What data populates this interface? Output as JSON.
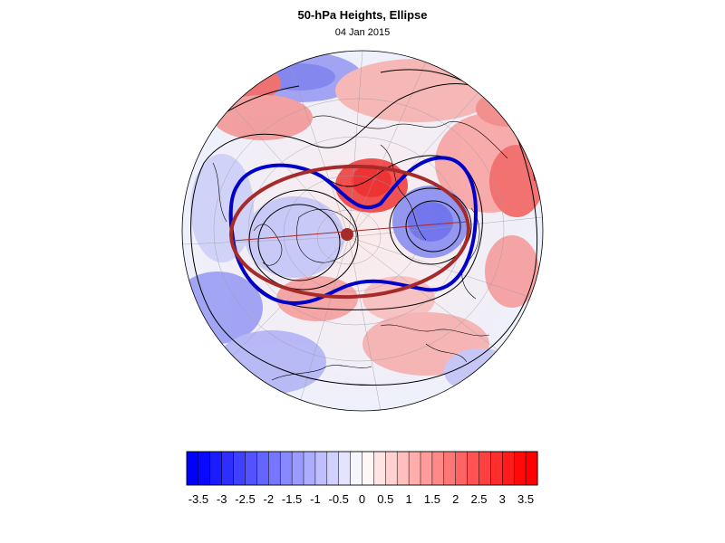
{
  "header": {
    "title": "50-hPa Heights, Ellipse",
    "date": "04 Jan 2015"
  },
  "map": {
    "projection": "orthographic (north polar)",
    "field": "50-hPa height anomaly",
    "overlays": [
      "ellipse fit (red)",
      "vortex edge contour (blue)",
      "height contours (black)",
      "coastlines",
      "lat/lon grid"
    ]
  },
  "colorbar": {
    "min": -3.75,
    "max": 3.75,
    "step": 0.25,
    "tick_labels": [
      "-3.5",
      "-3",
      "-2.5",
      "-2",
      "-1.5",
      "-1",
      "-0.5",
      "0",
      "0.5",
      "1",
      "1.5",
      "2",
      "2.5",
      "3",
      "3.5"
    ],
    "negative_color": "#0000ff",
    "positive_color": "#ff0000",
    "neutral_color": "#ffffff"
  },
  "colors": {
    "ellipse": "#a52a2a",
    "vortex_edge": "#0000c8",
    "contour": "#000000"
  }
}
